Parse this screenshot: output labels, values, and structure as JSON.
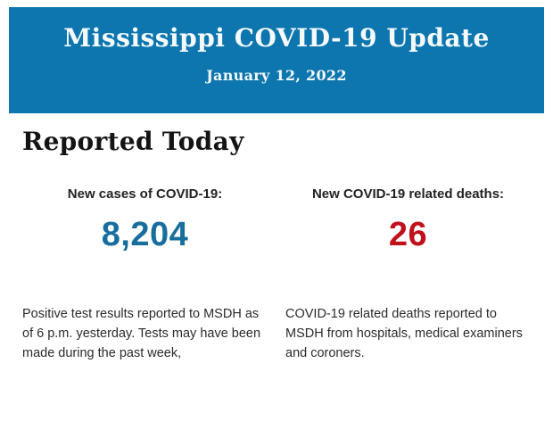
{
  "banner": {
    "title": "Mississippi COVID-19 Update",
    "date": "January 12, 2022",
    "background_color": "#0d76ae",
    "text_color": "#f5fafd"
  },
  "section": {
    "heading": "Reported Today"
  },
  "stats": [
    {
      "label": "New cases of COVID-19:",
      "value": "8,204",
      "value_color": "#176e9e",
      "description": "Positive test results reported to MSDH as of 6 p.m. yesterday. Tests may have been made during the past week,"
    },
    {
      "label": "New COVID-19 related deaths:",
      "value": "26",
      "value_color": "#c0121c",
      "description": "COVID-19 related deaths reported to MSDH from hospitals, medical examiners and coroners."
    }
  ]
}
